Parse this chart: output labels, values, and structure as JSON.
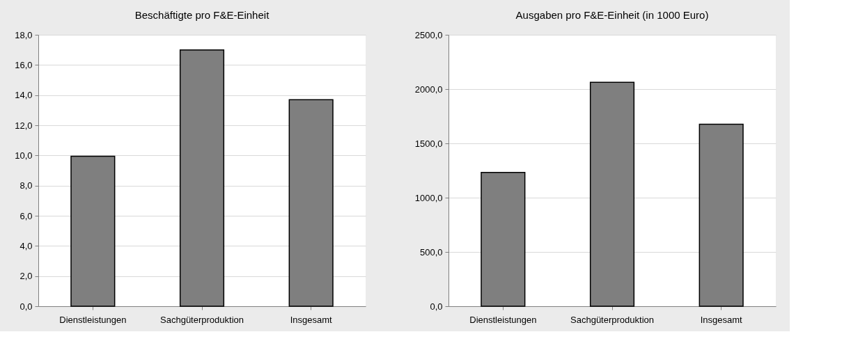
{
  "chart_data": [
    {
      "type": "bar",
      "title": "Beschäftigte pro F&E-Einheit",
      "categories": [
        "Dienstleistungen",
        "Sachgüterproduktion",
        "Insgesamt"
      ],
      "values": [
        9.95,
        17.0,
        13.7
      ],
      "color": "#7f7f7f",
      "ylim": [
        0,
        18
      ],
      "yticks": [
        {
          "value": 0,
          "label": "0,0"
        },
        {
          "value": 2,
          "label": "2,0"
        },
        {
          "value": 4,
          "label": "4,0"
        },
        {
          "value": 6,
          "label": "6,0"
        },
        {
          "value": 8,
          "label": "8,0"
        },
        {
          "value": 10,
          "label": "10,0"
        },
        {
          "value": 12,
          "label": "12,0"
        },
        {
          "value": 14,
          "label": "14,0"
        },
        {
          "value": 16,
          "label": "16,0"
        },
        {
          "value": 18,
          "label": "18,0"
        }
      ],
      "grid": "y"
    },
    {
      "type": "bar",
      "title": "Ausgaben pro F&E-Einheit (in 1000 Euro)",
      "categories": [
        "Dienstleistungen",
        "Sachgüterproduktion",
        "Insgesamt"
      ],
      "values": [
        1232,
        2063,
        1677
      ],
      "color": "#7f7f7f",
      "ylim": [
        0,
        2500
      ],
      "yticks": [
        {
          "value": 0,
          "label": "0,0"
        },
        {
          "value": 500,
          "label": "500,0"
        },
        {
          "value": 1000,
          "label": "1000,0"
        },
        {
          "value": 1500,
          "label": "1500,0"
        },
        {
          "value": 2000,
          "label": "2000,0"
        },
        {
          "value": 2500,
          "label": "2500,0"
        }
      ],
      "grid": "y"
    }
  ]
}
